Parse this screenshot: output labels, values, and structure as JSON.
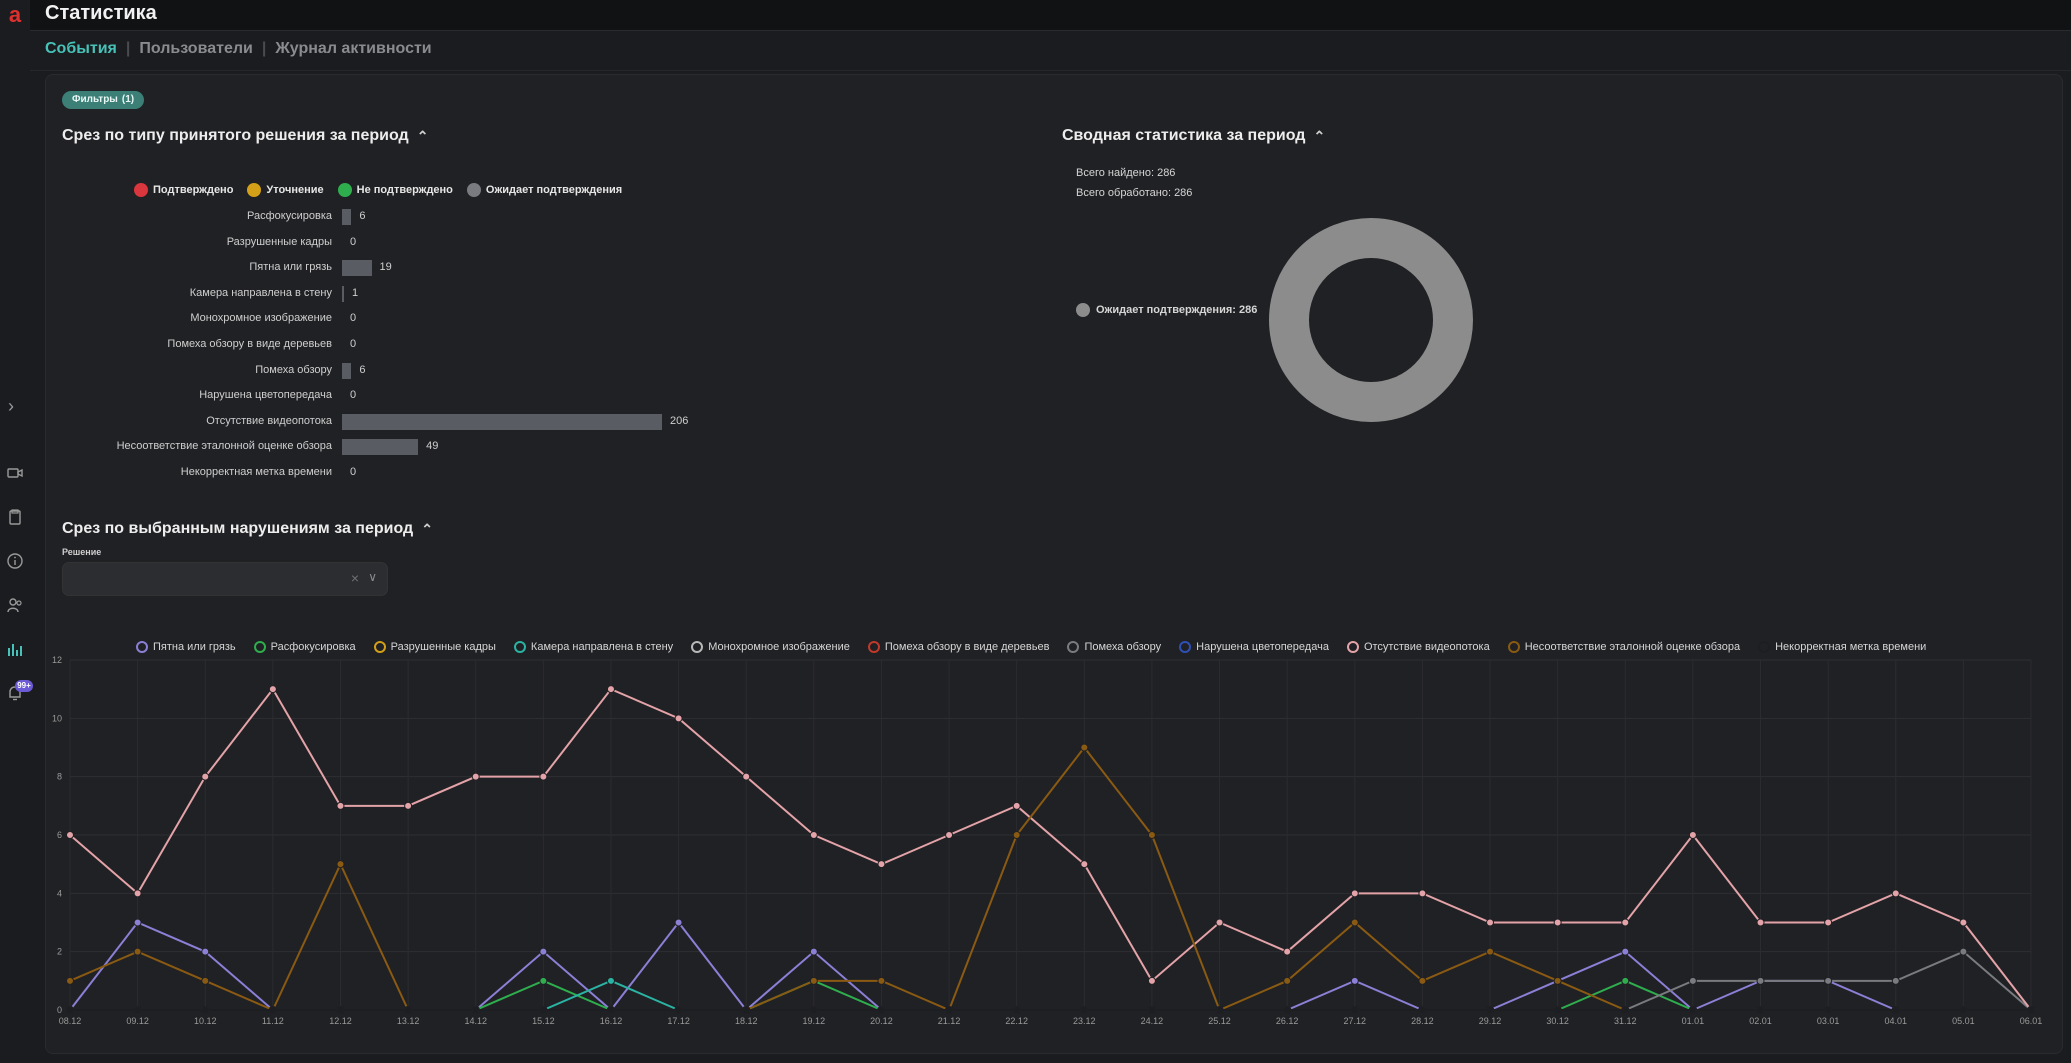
{
  "app": {
    "logo": "a",
    "title": "Статистика",
    "nav_badge": "99+"
  },
  "tabs": [
    {
      "label": "События",
      "active": true
    },
    {
      "label": "Пользователи",
      "active": false
    },
    {
      "label": "Журнал активности",
      "active": false
    }
  ],
  "filters": {
    "label": "Фильтры",
    "count": "(1)"
  },
  "decision_section": {
    "title": "Срез по типу принятого решения за период",
    "legend": [
      {
        "label": "Подтверждено",
        "color": "#d9363e"
      },
      {
        "label": "Уточнение",
        "color": "#d4a017"
      },
      {
        "label": "Не подтверждено",
        "color": "#2fae4e"
      },
      {
        "label": "Ожидает подтверждения",
        "color": "#7a7b80"
      }
    ],
    "rows": [
      {
        "label": "Расфокусировка",
        "value": 6
      },
      {
        "label": "Разрушенные кадры",
        "value": 0
      },
      {
        "label": "Пятна или грязь",
        "value": 19
      },
      {
        "label": "Камера направлена в стену",
        "value": 1
      },
      {
        "label": "Монохромное изображение",
        "value": 0
      },
      {
        "label": "Помеха обзору в виде деревьев",
        "value": 0
      },
      {
        "label": "Помеха обзору",
        "value": 6
      },
      {
        "label": "Нарушена цветопередача",
        "value": 0
      },
      {
        "label": "Отсутствие видеопотока",
        "value": 206
      },
      {
        "label": "Несоответствие эталонной оценке обзора",
        "value": 49
      },
      {
        "label": "Некорректная метка времени",
        "value": 0
      }
    ],
    "max": 206
  },
  "summary_section": {
    "title": "Сводная статистика за период",
    "total_found": "Всего найдено: 286",
    "total_processed": "Всего обработано: 286",
    "donut_legend": "Ожидает подтверждения: 286",
    "donut_color": "#8c8c8c"
  },
  "violations_section": {
    "title": "Срез по выбранным нарушениям за период",
    "select_label": "Решение",
    "select_value": ""
  },
  "chart_data": {
    "type": "line",
    "x": [
      "08.12",
      "09.12",
      "10.12",
      "11.12",
      "12.12",
      "13.12",
      "14.12",
      "15.12",
      "16.12",
      "17.12",
      "18.12",
      "19.12",
      "20.12",
      "21.12",
      "22.12",
      "23.12",
      "24.12",
      "25.12",
      "26.12",
      "27.12",
      "28.12",
      "29.12",
      "30.12",
      "31.12",
      "01.01",
      "02.01",
      "03.01",
      "04.01",
      "05.01",
      "06.01"
    ],
    "ylim": [
      0,
      12
    ],
    "yticks": [
      0,
      2,
      4,
      6,
      8,
      10,
      12
    ],
    "series": [
      {
        "name": "Пятна или грязь",
        "color": "#8b7fd6",
        "values": [
          0,
          3,
          2,
          0,
          0,
          0,
          0,
          2,
          0,
          3,
          0,
          2,
          0,
          0,
          0,
          0,
          0,
          0,
          0,
          1,
          0,
          0,
          1,
          2,
          0,
          1,
          1,
          0,
          0,
          0
        ]
      },
      {
        "name": "Расфокусировка",
        "color": "#2fae4e",
        "values": [
          0,
          0,
          0,
          0,
          0,
          0,
          0,
          1,
          0,
          0,
          0,
          1,
          0,
          0,
          0,
          0,
          0,
          0,
          0,
          0,
          0,
          0,
          0,
          1,
          0,
          0,
          0,
          0,
          0,
          0
        ]
      },
      {
        "name": "Разрушенные кадры",
        "color": "#d4a017",
        "values": [
          0,
          0,
          0,
          0,
          0,
          0,
          0,
          0,
          0,
          0,
          0,
          0,
          0,
          0,
          0,
          0,
          0,
          0,
          0,
          0,
          0,
          0,
          0,
          0,
          0,
          0,
          0,
          0,
          0,
          0
        ]
      },
      {
        "name": "Камера направлена в стену",
        "color": "#2bb3a3",
        "values": [
          0,
          0,
          0,
          0,
          0,
          0,
          0,
          0,
          1,
          0,
          0,
          0,
          0,
          0,
          0,
          0,
          0,
          0,
          0,
          0,
          0,
          0,
          0,
          0,
          0,
          0,
          0,
          0,
          0,
          0
        ]
      },
      {
        "name": "Монохромное изображение",
        "color": "#b8b8b8",
        "values": [
          0,
          0,
          0,
          0,
          0,
          0,
          0,
          0,
          0,
          0,
          0,
          0,
          0,
          0,
          0,
          0,
          0,
          0,
          0,
          0,
          0,
          0,
          0,
          0,
          0,
          0,
          0,
          0,
          0,
          0
        ]
      },
      {
        "name": "Помеха обзору в виде деревьев",
        "color": "#c0392b",
        "values": [
          0,
          0,
          0,
          0,
          0,
          0,
          0,
          0,
          0,
          0,
          0,
          0,
          0,
          0,
          0,
          0,
          0,
          0,
          0,
          0,
          0,
          0,
          0,
          0,
          0,
          0,
          0,
          0,
          0,
          0
        ]
      },
      {
        "name": "Помеха обзору",
        "color": "#7a7b80",
        "values": [
          0,
          0,
          0,
          0,
          0,
          0,
          0,
          0,
          0,
          0,
          0,
          0,
          0,
          0,
          0,
          0,
          0,
          0,
          0,
          0,
          0,
          0,
          0,
          0,
          1,
          1,
          1,
          1,
          2,
          0
        ]
      },
      {
        "name": "Нарушена цветопередача",
        "color": "#2f4fb5",
        "values": [
          0,
          0,
          0,
          0,
          0,
          0,
          0,
          0,
          0,
          0,
          0,
          0,
          0,
          0,
          0,
          0,
          0,
          0,
          0,
          0,
          0,
          0,
          0,
          0,
          0,
          0,
          0,
          0,
          0,
          0
        ]
      },
      {
        "name": "Отсутствие видеопотока",
        "color": "#e3a3a8",
        "values": [
          6,
          4,
          8,
          11,
          7,
          7,
          8,
          8,
          11,
          10,
          8,
          6,
          5,
          6,
          7,
          5,
          1,
          3,
          2,
          4,
          4,
          3,
          3,
          3,
          6,
          3,
          3,
          4,
          3,
          0
        ]
      },
      {
        "name": "Несоответствие эталонной оценке обзора",
        "color": "#8a5a12",
        "values": [
          1,
          2,
          1,
          0,
          5,
          0,
          0,
          0,
          0,
          0,
          0,
          1,
          1,
          0,
          6,
          9,
          6,
          0,
          1,
          3,
          1,
          2,
          1,
          0,
          0,
          0,
          0,
          0,
          0,
          0
        ]
      },
      {
        "name": "Некорректная метка времени",
        "color": "#1d1e21",
        "values": [
          0,
          0,
          0,
          0,
          0,
          0,
          0,
          0,
          0,
          0,
          0,
          0,
          0,
          0,
          0,
          0,
          0,
          0,
          0,
          0,
          0,
          0,
          0,
          0,
          0,
          0,
          0,
          0,
          0,
          0
        ]
      }
    ]
  }
}
